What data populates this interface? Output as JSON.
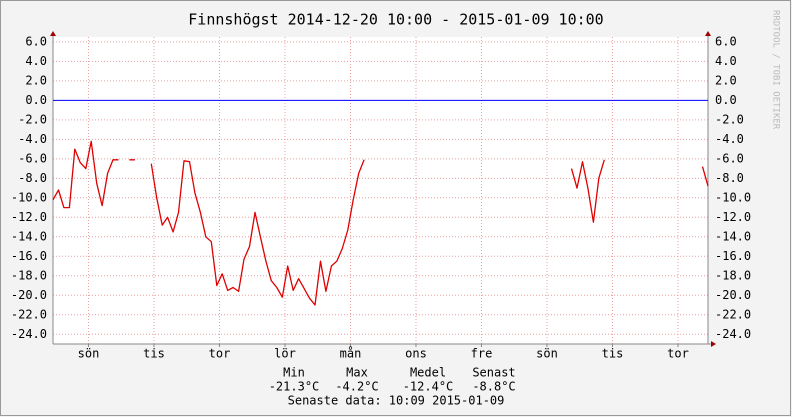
{
  "chart_data": {
    "type": "line",
    "title": "Finnshögst 2014-12-20 10:00 - 2015-01-09 10:00",
    "watermark": "RRDTOOL / TOBI OETIKER",
    "xlim": [
      0,
      480
    ],
    "xticks": [
      {
        "value": 26,
        "label": "sön"
      },
      {
        "value": 74,
        "label": "tis"
      },
      {
        "value": 122,
        "label": "tor"
      },
      {
        "value": 170,
        "label": "lör"
      },
      {
        "value": 218,
        "label": "mån"
      },
      {
        "value": 266,
        "label": "ons"
      },
      {
        "value": 314,
        "label": "fre"
      },
      {
        "value": 362,
        "label": "sön"
      },
      {
        "value": 410,
        "label": "tis"
      },
      {
        "value": 458,
        "label": "tor"
      }
    ],
    "ylim": [
      -25,
      6.5
    ],
    "yticks": [
      {
        "value": 6,
        "label": "6.0"
      },
      {
        "value": 4,
        "label": "4.0"
      },
      {
        "value": 2,
        "label": "2.0"
      },
      {
        "value": 0,
        "label": "0.0"
      },
      {
        "value": -2,
        "label": "-2.0"
      },
      {
        "value": -4,
        "label": "-4.0"
      },
      {
        "value": -6,
        "label": "-6.0"
      },
      {
        "value": -8,
        "label": "-8.0"
      },
      {
        "value": -10,
        "label": "-10.0"
      },
      {
        "value": -12,
        "label": "-12.0"
      },
      {
        "value": -14,
        "label": "-14.0"
      },
      {
        "value": -16,
        "label": "-16.0"
      },
      {
        "value": -18,
        "label": "-18.0"
      },
      {
        "value": -20,
        "label": "-20.0"
      },
      {
        "value": -22,
        "label": "-22.0"
      },
      {
        "value": -24,
        "label": "-24.0"
      }
    ],
    "grid": true,
    "hrule": {
      "value": 0,
      "color": "#0000ff"
    },
    "series": [
      {
        "color": "#e00000",
        "x": [
          0,
          4,
          8,
          12,
          16,
          20,
          24,
          28,
          32,
          36,
          40,
          44,
          48,
          52,
          56,
          60,
          64,
          68,
          72,
          76,
          80,
          84,
          88,
          92,
          96,
          100,
          104,
          108,
          112,
          116,
          120,
          124,
          128,
          132,
          136,
          140,
          144,
          148,
          152,
          156,
          160,
          164,
          168,
          172,
          176,
          180,
          184,
          188,
          192,
          196,
          200,
          204,
          208,
          212,
          216,
          220,
          224,
          228,
          232,
          236,
          240,
          244,
          248,
          252,
          256,
          260,
          264,
          268,
          272,
          276,
          280,
          284,
          288,
          292,
          296,
          300,
          304,
          308,
          312,
          316,
          320,
          324,
          328,
          332,
          336,
          340,
          344,
          348,
          352,
          356,
          360,
          364,
          368,
          372,
          376,
          380,
          384,
          388,
          392,
          396,
          400,
          404,
          408,
          412,
          416,
          420,
          424,
          428,
          432,
          436,
          440,
          444,
          448,
          452,
          456,
          460,
          464,
          468,
          472,
          476,
          480
        ],
        "values": [
          -10.2,
          -9.2,
          -11,
          -11,
          -5,
          -6.4,
          -7,
          -4.2,
          -8.5,
          -10.8,
          -7.5,
          -6.1,
          -6.1,
          null,
          -6.1,
          -6.1,
          null,
          null,
          -6.5,
          -10,
          -12.8,
          -12,
          -13.5,
          -11.5,
          -6.2,
          -6.3,
          -9.5,
          -11.5,
          -14,
          -14.5,
          -19,
          -17.8,
          -19.5,
          -19.2,
          -19.6,
          -16.3,
          -15,
          -11.5,
          -14,
          -16.5,
          -18.5,
          -19.2,
          -20.2,
          -17,
          -19.5,
          -18.3,
          -19.3,
          -20.3,
          -21,
          -16.5,
          -19.6,
          -17,
          -16.5,
          -15.2,
          -13.3,
          -10.2,
          -7.5,
          -6.1,
          null,
          null,
          null,
          null,
          null,
          null,
          null,
          null,
          null,
          null,
          null,
          null,
          null,
          null,
          null,
          null,
          null,
          null,
          null,
          null,
          null,
          null,
          null,
          null,
          null,
          null,
          null,
          null,
          null,
          null,
          null,
          null,
          null,
          null,
          null,
          null,
          null,
          -7,
          -9,
          -6.3,
          -9,
          -12.5,
          -8,
          -6.1,
          null,
          null,
          null,
          null,
          null,
          null,
          null,
          null,
          null,
          null,
          null,
          null,
          null,
          null,
          null,
          null,
          null,
          -6.8,
          -8.8
        ]
      }
    ],
    "stats": {
      "names": [
        "Min",
        "Max",
        "Medel",
        "Senast"
      ],
      "values": [
        -21.3,
        -4.2,
        -12.4,
        -8.8
      ],
      "value_labels": [
        "-21.3°C",
        "-4.2°C",
        "-12.4°C",
        "-8.8°C"
      ]
    },
    "footer": "Senaste data: 10:09 2015-01-09"
  }
}
